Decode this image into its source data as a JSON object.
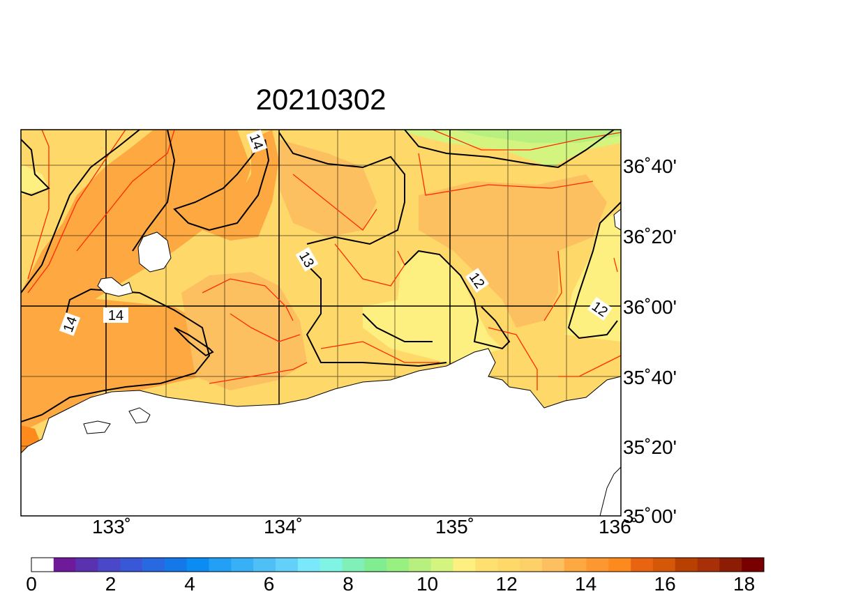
{
  "title": "20210302",
  "lon_labels": [
    "133˚",
    "134˚",
    "135˚",
    "136˚"
  ],
  "lat_labels": [
    "36˚40'",
    "36˚20'",
    "36˚00'",
    "35˚40'",
    "35˚20'",
    "35˚00'"
  ],
  "contour_labels": [
    "14",
    "13",
    "12",
    "14",
    "14",
    "12"
  ],
  "colorbar": {
    "labels": [
      "0",
      "2",
      "4",
      "6",
      "8",
      "10",
      "12",
      "14",
      "16",
      "18"
    ],
    "colors": [
      "#ffffff",
      "#6e1a9a",
      "#5a32b0",
      "#4a48c8",
      "#3858d8",
      "#2868e0",
      "#1478e8",
      "#0a8cf2",
      "#22a0f5",
      "#38b0f5",
      "#4ec0f6",
      "#62d0f8",
      "#78e8fa",
      "#80f4e4",
      "#80f0b8",
      "#80ee90",
      "#98f080",
      "#b8f080",
      "#d4f480",
      "#fef080",
      "#fee070",
      "#fed868",
      "#fdd068",
      "#fdc060",
      "#fda840",
      "#fd9830",
      "#fd8a1c",
      "#e86410",
      "#d45808",
      "#b84000",
      "#a83008",
      "#8c1c04",
      "#780000"
    ]
  },
  "chart_data": {
    "type": "heatmap",
    "title": "20210302",
    "x_range": [
      132.45,
      135.95
    ],
    "y_range": [
      35.0,
      36.833
    ],
    "x_ticks": [
      133,
      134,
      135,
      136
    ],
    "y_ticks": [
      35.0,
      35.333,
      35.667,
      36.0,
      36.333,
      36.667
    ],
    "colorbar_range": [
      0,
      18.5
    ],
    "contour_levels": [
      12,
      13,
      14
    ],
    "grid": true
  }
}
